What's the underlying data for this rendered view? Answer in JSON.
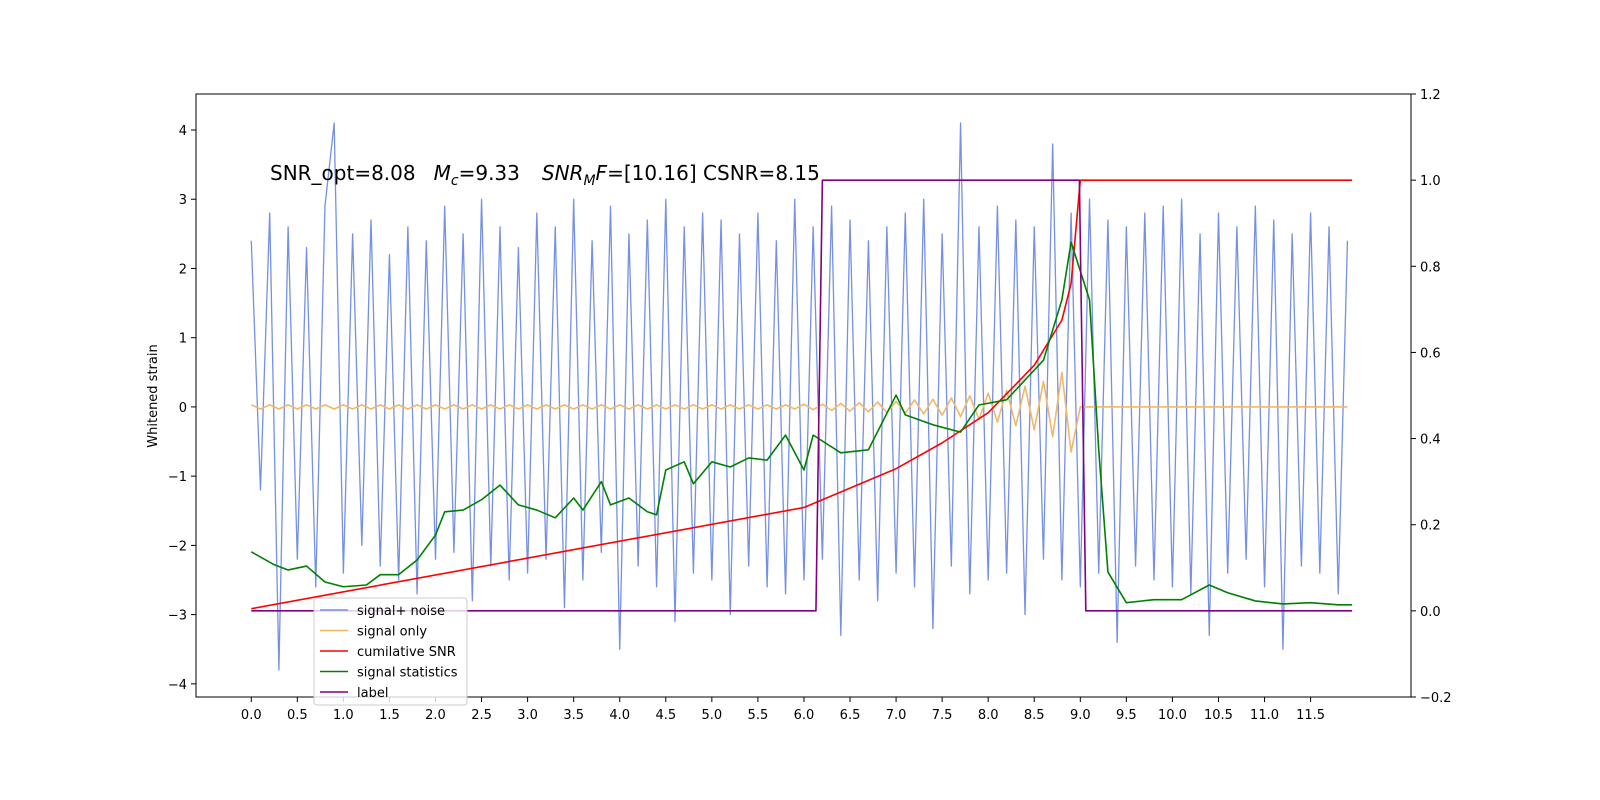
{
  "chart_data": {
    "type": "line",
    "annotation_parts": [
      "SNR_opt=8.08",
      "M",
      "c",
      "=9.33",
      "SNR",
      "M",
      "F",
      "=[10.16] CSNR=8.15"
    ],
    "ylabel": "Whitened strain",
    "xlim": [
      -0.6,
      12.59
    ],
    "ylim": [
      -4.19,
      4.52
    ],
    "y2lim": [
      -0.2,
      1.2
    ],
    "xticks": [
      {
        "value": 0,
        "label": "0.0"
      },
      0.5,
      {
        "value": 1,
        "label": "1.0"
      },
      1.5,
      {
        "value": 2,
        "label": "2.0"
      },
      2.5,
      {
        "value": 3,
        "label": "3.0"
      },
      3.5,
      {
        "value": 4,
        "label": "4.0"
      },
      4.5,
      {
        "value": 5,
        "label": "5.0"
      },
      5.5,
      {
        "value": 6,
        "label": "6.0"
      },
      6.5,
      {
        "value": 7,
        "label": "7.0"
      },
      7.5,
      {
        "value": 8,
        "label": "8.0"
      },
      8.5,
      {
        "value": 9,
        "label": "9.0"
      },
      9.5,
      {
        "value": 10,
        "label": "10.0"
      },
      10.5,
      {
        "value": 11,
        "label": "11.0"
      },
      11.5
    ],
    "yticks": [
      {
        "value": -4,
        "label": "−4"
      },
      {
        "value": -3,
        "label": "−3"
      },
      {
        "value": -2,
        "label": "−2"
      },
      {
        "value": -1,
        "label": "−1"
      },
      0,
      1,
      2,
      3,
      4
    ],
    "y2ticks": [
      {
        "value": -0.2,
        "label": "−0.2"
      },
      {
        "value": 0,
        "label": "0.0"
      },
      0.2,
      0.4,
      0.6,
      0.8,
      {
        "value": 1,
        "label": "1.0"
      },
      1.2
    ],
    "legend": "lower left",
    "x": [
      0.0,
      0.1,
      0.2,
      0.3,
      0.4,
      0.5,
      0.6,
      0.7,
      0.8,
      0.9,
      1.0,
      1.1,
      1.2,
      1.3,
      1.4,
      1.5,
      1.6,
      1.7,
      1.8,
      1.9,
      2.0,
      2.1,
      2.2,
      2.3,
      2.4,
      2.5,
      2.6,
      2.7,
      2.8,
      2.9,
      3.0,
      3.1,
      3.2,
      3.3,
      3.4,
      3.5,
      3.6,
      3.7,
      3.8,
      3.9,
      4.0,
      4.1,
      4.2,
      4.3,
      4.4,
      4.5,
      4.6,
      4.7,
      4.8,
      4.9,
      5.0,
      5.1,
      5.2,
      5.3,
      5.4,
      5.5,
      5.6,
      5.7,
      5.8,
      5.9,
      6.0,
      6.1,
      6.2,
      6.3,
      6.4,
      6.5,
      6.6,
      6.7,
      6.8,
      6.9,
      7.0,
      7.1,
      7.2,
      7.3,
      7.4,
      7.5,
      7.6,
      7.7,
      7.8,
      7.9,
      8.0,
      8.1,
      8.2,
      8.3,
      8.4,
      8.5,
      8.6,
      8.7,
      8.8,
      8.9,
      9.0,
      9.1,
      9.2,
      9.3,
      9.4,
      9.5,
      9.6,
      9.7,
      9.8,
      9.9,
      10.0,
      10.1,
      10.2,
      10.3,
      10.4,
      10.5,
      10.6,
      10.7,
      10.8,
      10.9,
      11.0,
      11.1,
      11.2,
      11.3,
      11.4,
      11.5,
      11.6,
      11.7,
      11.8,
      11.9
    ],
    "series": [
      {
        "name": "signal+ noise",
        "color": "#7590e5",
        "axis": "y",
        "values": [
          2.4,
          -1.2,
          2.8,
          -3.8,
          2.6,
          -2.2,
          2.3,
          -2.6,
          2.9,
          4.1,
          -2.4,
          2.5,
          -2.0,
          2.7,
          -2.3,
          2.2,
          -2.5,
          2.6,
          -2.7,
          2.4,
          -2.2,
          2.9,
          -2.1,
          2.5,
          -2.8,
          3.0,
          -2.3,
          2.6,
          -2.5,
          2.3,
          -2.4,
          2.8,
          -2.2,
          2.6,
          -2.9,
          3.0,
          -2.5,
          2.4,
          -2.1,
          2.9,
          -3.5,
          2.5,
          -2.3,
          2.7,
          -2.6,
          3.0,
          -3.1,
          2.6,
          -2.4,
          2.8,
          -2.5,
          2.7,
          -3.0,
          2.5,
          -2.3,
          2.8,
          -2.6,
          2.4,
          -2.7,
          3.0,
          -2.5,
          2.6,
          -2.2,
          2.9,
          -3.3,
          2.7,
          -2.5,
          2.4,
          -2.8,
          2.6,
          -2.4,
          2.8,
          -2.6,
          3.0,
          -3.2,
          2.5,
          -2.3,
          4.1,
          -2.7,
          2.6,
          -2.5,
          2.9,
          -2.4,
          2.7,
          -3.0,
          2.6,
          -2.2,
          3.8,
          -2.5,
          2.8,
          -2.6,
          3.0,
          -2.4,
          2.7,
          -3.4,
          2.6,
          -2.3,
          2.8,
          -2.5,
          2.9,
          -2.6,
          3.0,
          -2.7,
          2.5,
          -3.3,
          2.8,
          -2.4,
          2.6,
          -2.2,
          2.9,
          -2.6,
          2.7,
          -3.5,
          2.5,
          -2.3,
          2.8,
          -2.4,
          2.6,
          -2.7,
          2.4
        ]
      },
      {
        "name": "signal only",
        "color": "#f2b866",
        "axis": "y",
        "values": [
          0.03,
          -0.03,
          0.03,
          -0.03,
          0.03,
          -0.03,
          0.03,
          -0.03,
          0.03,
          -0.03,
          0.03,
          -0.03,
          0.03,
          -0.03,
          0.03,
          -0.03,
          0.03,
          -0.03,
          0.03,
          -0.03,
          0.03,
          -0.03,
          0.03,
          -0.03,
          0.03,
          -0.03,
          0.03,
          -0.03,
          0.03,
          -0.03,
          0.03,
          -0.03,
          0.03,
          -0.03,
          0.03,
          -0.03,
          0.03,
          -0.03,
          0.03,
          -0.03,
          0.03,
          -0.03,
          0.03,
          -0.03,
          0.03,
          -0.03,
          0.03,
          -0.03,
          0.03,
          -0.03,
          0.03,
          -0.03,
          0.03,
          -0.03,
          0.03,
          -0.03,
          0.03,
          -0.03,
          0.03,
          -0.03,
          0.04,
          -0.04,
          0.04,
          -0.05,
          0.05,
          -0.06,
          0.06,
          -0.07,
          0.07,
          -0.08,
          0.08,
          -0.09,
          0.1,
          -0.1,
          0.11,
          -0.12,
          0.13,
          -0.14,
          0.16,
          -0.18,
          0.2,
          -0.22,
          0.24,
          -0.27,
          0.3,
          -0.33,
          0.37,
          -0.43,
          0.5,
          -0.65,
          0,
          0,
          0,
          0,
          0,
          0,
          0,
          0,
          0,
          0,
          0,
          0,
          0,
          0,
          0,
          0,
          0,
          0,
          0,
          0,
          0,
          0,
          0,
          0,
          0,
          0,
          0,
          0,
          0,
          0
        ]
      },
      {
        "name": "cumilative SNR",
        "color": "#ff0000",
        "axis": "y2",
        "x": [
          0,
          6,
          7,
          7.5,
          8,
          8.5,
          8.8,
          8.9,
          9.0,
          11.95
        ],
        "values": [
          0.005,
          0.24,
          0.33,
          0.39,
          0.46,
          0.57,
          0.675,
          0.76,
          1.0,
          1.0
        ]
      },
      {
        "name": "signal statistics",
        "color": "#008000",
        "axis": "y2",
        "x": [
          0,
          0.25,
          0.4,
          0.6,
          0.8,
          1.0,
          1.25,
          1.4,
          1.6,
          1.8,
          2.0,
          2.1,
          2.3,
          2.5,
          2.7,
          2.9,
          3.1,
          3.3,
          3.5,
          3.6,
          3.8,
          3.9,
          4.1,
          4.3,
          4.4,
          4.5,
          4.7,
          4.8,
          5.0,
          5.2,
          5.4,
          5.6,
          5.8,
          6.0,
          6.1,
          6.4,
          6.7,
          7.0,
          7.1,
          7.4,
          7.7,
          7.9,
          8.2,
          8.4,
          8.6,
          8.8,
          8.9,
          9.1,
          9.2,
          9.3,
          9.5,
          9.8,
          10.1,
          10.4,
          10.6,
          10.9,
          11.2,
          11.5,
          11.8,
          11.95
        ],
        "values": [
          0.137,
          0.107,
          0.095,
          0.104,
          0.067,
          0.056,
          0.06,
          0.084,
          0.084,
          0.118,
          0.176,
          0.23,
          0.234,
          0.258,
          0.292,
          0.246,
          0.234,
          0.216,
          0.262,
          0.234,
          0.3,
          0.246,
          0.262,
          0.23,
          0.223,
          0.327,
          0.346,
          0.295,
          0.346,
          0.334,
          0.355,
          0.35,
          0.408,
          0.327,
          0.408,
          0.367,
          0.374,
          0.501,
          0.455,
          0.432,
          0.415,
          0.478,
          0.49,
          0.536,
          0.582,
          0.722,
          0.856,
          0.722,
          0.374,
          0.09,
          0.019,
          0.026,
          0.026,
          0.06,
          0.042,
          0.023,
          0.016,
          0.019,
          0.014,
          0.014
        ]
      },
      {
        "name": "label",
        "color": "#800080",
        "axis": "y2",
        "x": [
          0,
          6.13,
          6.2,
          8.99,
          9.06,
          11.95
        ],
        "values": [
          0,
          0,
          1,
          1,
          0,
          0
        ]
      }
    ]
  }
}
